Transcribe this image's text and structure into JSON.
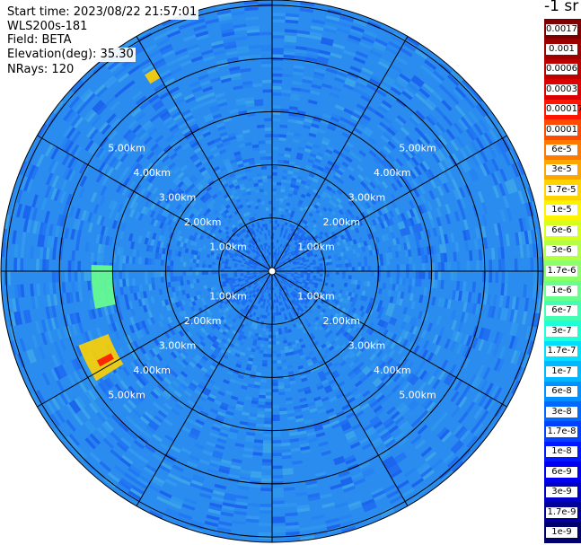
{
  "info": {
    "start_time": "Start time: 2023/08/22 21:57:01",
    "instrument": "WLS200s-181",
    "field": "Field: BETA",
    "elevation": "Elevation(deg): 35.30",
    "nrays": "NRays: 120"
  },
  "colorbar": {
    "title": "-1 sr",
    "entries": [
      {
        "label": "0.0017",
        "color": "#7f0000"
      },
      {
        "label": "0.001",
        "color": "#9e0000"
      },
      {
        "label": "0.0006",
        "color": "#bd0000"
      },
      {
        "label": "0.0003",
        "color": "#dc0000"
      },
      {
        "label": "0.00017",
        "color": "#ff1500"
      },
      {
        "label": "0.0001",
        "color": "#ff4a00"
      },
      {
        "label": "6e-5",
        "color": "#ff7800"
      },
      {
        "label": "3e-5",
        "color": "#ffa500"
      },
      {
        "label": "1.7e-5",
        "color": "#ffd200"
      },
      {
        "label": "1e-5",
        "color": "#fbf300"
      },
      {
        "label": "6e-6",
        "color": "#d6ff1e"
      },
      {
        "label": "3e-6",
        "color": "#b3ff43"
      },
      {
        "label": "1.7e-6",
        "color": "#8dff69"
      },
      {
        "label": "1e-6",
        "color": "#69ff8d"
      },
      {
        "label": "6e-7",
        "color": "#43ffb3"
      },
      {
        "label": "3e-7",
        "color": "#1effd6"
      },
      {
        "label": "1.7e-7",
        "color": "#00e0fb"
      },
      {
        "label": "1e-7",
        "color": "#00b8ff"
      },
      {
        "label": "6e-8",
        "color": "#0090ff"
      },
      {
        "label": "3e-8",
        "color": "#0068ff"
      },
      {
        "label": "1.7e-8",
        "color": "#0040ff"
      },
      {
        "label": "1e-8",
        "color": "#0018ff"
      },
      {
        "label": "6e-9",
        "color": "#0000f1"
      },
      {
        "label": "3e-9",
        "color": "#0000c4"
      },
      {
        "label": "1.7e-9",
        "color": "#000096"
      },
      {
        "label": "1e-9",
        "color": "#00006c"
      }
    ]
  },
  "chart_data": {
    "type": "heatmap",
    "projection": "polar (PPI scan)",
    "rays": 120,
    "ring_labels": [
      "1.00km",
      "2.00km",
      "3.00km",
      "4.00km",
      "5.00km"
    ],
    "range_rings_km": [
      1,
      2,
      3,
      4,
      5
    ],
    "max_range_km": 5.1,
    "spokes_deg": [
      0,
      30,
      60,
      90,
      120,
      150,
      180,
      210,
      240,
      270,
      300,
      330
    ],
    "background_color": "#2b8cf0",
    "inner_color": "#1f6ff0",
    "highlight_regions": [
      {
        "azimuth_deg": [
          238,
          249
        ],
        "range_km": [
          3.3,
          3.9
        ],
        "level": "1.7e-5"
      },
      {
        "azimuth_deg": [
          241,
          243
        ],
        "range_km": [
          3.4,
          3.7
        ],
        "level": "0.00017"
      },
      {
        "azimuth_deg": [
          327,
          330
        ],
        "range_km": [
          4.2,
          4.4
        ],
        "level": "1.7e-5"
      },
      {
        "azimuth_deg": [
          258,
          272
        ],
        "range_km": [
          3.0,
          3.4
        ],
        "level": "1e-6"
      }
    ]
  }
}
